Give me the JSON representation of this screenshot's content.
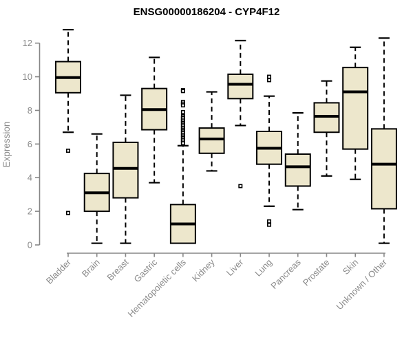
{
  "title": "ENSG00000186204 - CYP4F12",
  "chart_data": {
    "type": "boxplot",
    "title": "ENSG00000186204 - CYP4F12",
    "xlabel": "",
    "ylabel": "Expression",
    "yticks": [
      0,
      2,
      4,
      6,
      8,
      10,
      12
    ],
    "ylim": [
      -0.4,
      13.2
    ],
    "grid": false,
    "legend": "none",
    "categories": [
      "Bladder",
      "Brain",
      "Breast",
      "Gastric",
      "Hematopoietic cells",
      "Kidney",
      "Liver",
      "Lung",
      "Pancreas",
      "Prostate",
      "Skin",
      "Unknown / Other"
    ],
    "boxes": [
      {
        "category": "Bladder",
        "whisker_low": 6.7,
        "q1": 9.05,
        "median": 9.95,
        "q3": 10.9,
        "whisker_high": 12.8,
        "outliers": [
          5.6,
          1.9
        ]
      },
      {
        "category": "Brain",
        "whisker_low": 0.1,
        "q1": 2.0,
        "median": 3.1,
        "q3": 4.25,
        "whisker_high": 6.6,
        "outliers": []
      },
      {
        "category": "Breast",
        "whisker_low": 0.1,
        "q1": 2.8,
        "median": 4.55,
        "q3": 6.1,
        "whisker_high": 8.9,
        "outliers": []
      },
      {
        "category": "Gastric",
        "whisker_low": 3.7,
        "q1": 6.85,
        "median": 8.05,
        "q3": 9.3,
        "whisker_high": 11.15,
        "outliers": []
      },
      {
        "category": "Hematopoietic cells",
        "whisker_low": 0.1,
        "q1": 0.1,
        "median": 1.25,
        "q3": 2.4,
        "whisker_high": 5.9,
        "outliers": [
          9.2,
          9.15,
          8.5,
          8.4,
          8.3,
          7.9,
          7.65,
          7.55,
          7.45,
          7.35,
          7.25,
          7.15,
          7.05,
          6.95,
          6.85,
          6.75,
          6.65,
          6.55,
          6.45,
          6.35,
          6.25,
          6.15,
          6.05
        ]
      },
      {
        "category": "Kidney",
        "whisker_low": 4.4,
        "q1": 5.45,
        "median": 6.3,
        "q3": 6.95,
        "whisker_high": 9.1,
        "outliers": []
      },
      {
        "category": "Liver",
        "whisker_low": 7.1,
        "q1": 8.7,
        "median": 9.55,
        "q3": 10.15,
        "whisker_high": 12.15,
        "outliers": [
          3.5
        ]
      },
      {
        "category": "Lung",
        "whisker_low": 2.3,
        "q1": 4.8,
        "median": 5.75,
        "q3": 6.75,
        "whisker_high": 8.85,
        "outliers": [
          10.0,
          9.8,
          1.4,
          1.2
        ]
      },
      {
        "category": "Pancreas",
        "whisker_low": 2.1,
        "q1": 3.5,
        "median": 4.65,
        "q3": 5.4,
        "whisker_high": 7.85,
        "outliers": []
      },
      {
        "category": "Prostate",
        "whisker_low": 4.1,
        "q1": 6.7,
        "median": 7.65,
        "q3": 8.45,
        "whisker_high": 9.75,
        "outliers": []
      },
      {
        "category": "Skin",
        "whisker_low": 3.9,
        "q1": 5.7,
        "median": 9.1,
        "q3": 10.55,
        "whisker_high": 11.75,
        "outliers": []
      },
      {
        "category": "Unknown / Other",
        "whisker_low": 0.1,
        "q1": 2.15,
        "median": 4.8,
        "q3": 6.9,
        "whisker_high": 12.3,
        "outliers": []
      }
    ],
    "colors": {
      "box_fill": "#EDE7CC",
      "box_border": "#000000",
      "median": "#000000",
      "whisker": "#000000",
      "outlier": "#000000",
      "axis": "#878787",
      "tick_text": "#8A8A8A",
      "title_text": "#000000",
      "background": "#FFFFFF"
    }
  }
}
